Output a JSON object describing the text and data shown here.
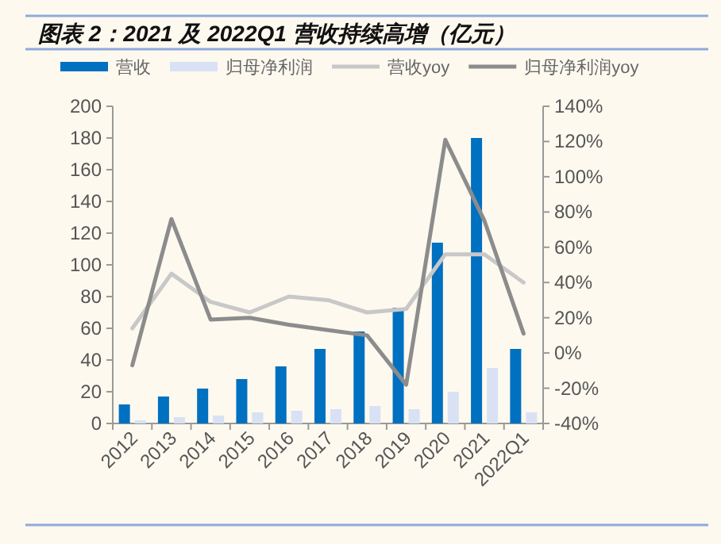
{
  "chart_data": {
    "type": "bar",
    "title": "图表 2：2021 及 2022Q1 营收持续高增（亿元）",
    "categories": [
      "2012",
      "2013",
      "2014",
      "2015",
      "2016",
      "2017",
      "2018",
      "2019",
      "2020",
      "2021",
      "2022Q1"
    ],
    "series": [
      {
        "name": "营收",
        "type": "bar",
        "color": "#0070c0",
        "values": [
          12,
          17,
          22,
          28,
          36,
          47,
          58,
          73,
          114,
          180,
          47
        ]
      },
      {
        "name": "归母净利润",
        "type": "bar",
        "color": "#d9e1f4",
        "values": [
          2,
          4,
          5,
          7,
          8,
          9,
          11,
          9,
          20,
          35,
          7
        ]
      },
      {
        "name": "营收yoy",
        "type": "line",
        "axis": "y2",
        "color": "#c8c8c8",
        "values": [
          14,
          45,
          29,
          23,
          32,
          30,
          23,
          25,
          56,
          56,
          40
        ]
      },
      {
        "name": "归母净利润yoy",
        "type": "line",
        "axis": "y2",
        "color": "#8c8c8c",
        "values": [
          -7,
          76,
          19,
          20,
          16,
          13,
          10,
          -18,
          121,
          75,
          11
        ]
      }
    ],
    "ylim": [
      0,
      200
    ],
    "yticks": [
      0,
      20,
      40,
      60,
      80,
      100,
      120,
      140,
      160,
      180,
      200
    ],
    "y2lim": [
      -40,
      140
    ],
    "y2ticks": [
      {
        "value": -40,
        "label": "-40%"
      },
      {
        "value": -20,
        "label": "-20%"
      },
      {
        "value": 0,
        "label": "0%"
      },
      {
        "value": 20,
        "label": "20%"
      },
      {
        "value": 40,
        "label": "40%"
      },
      {
        "value": 60,
        "label": "60%"
      },
      {
        "value": 80,
        "label": "80%"
      },
      {
        "value": 100,
        "label": "100%"
      },
      {
        "value": 120,
        "label": "120%"
      },
      {
        "value": 140,
        "label": "140%"
      }
    ],
    "grid": false,
    "legend": "top",
    "marker": "none",
    "line_style": "solid"
  }
}
